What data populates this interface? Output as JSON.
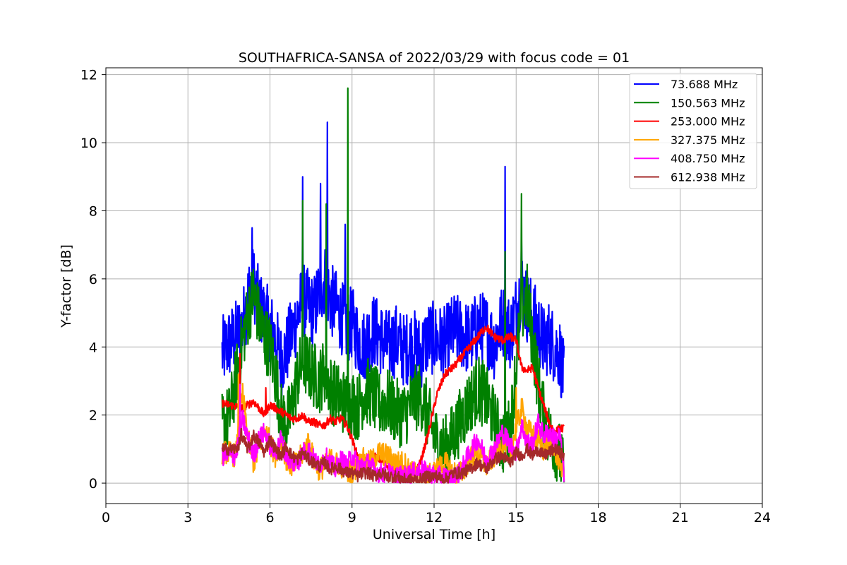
{
  "chart_data": {
    "type": "line",
    "title": "SOUTHAFRICA-SANSA of 2022/03/29 with focus code = 01",
    "xlabel": "Universal Time [h]",
    "ylabel": "Y-factor [dB]",
    "xlim": [
      0,
      24
    ],
    "ylim": [
      -0.6,
      12.2
    ],
    "xticks": [
      0,
      3,
      6,
      9,
      12,
      15,
      18,
      21,
      24
    ],
    "xtick_labels": [
      "0",
      "3",
      "6",
      "9",
      "12",
      "15",
      "18",
      "21",
      "24"
    ],
    "yticks": [
      0,
      2,
      4,
      6,
      8,
      10,
      12
    ],
    "ytick_labels": [
      "0",
      "2",
      "4",
      "6",
      "8",
      "10",
      "12"
    ],
    "grid": true,
    "legend_position": "top-right",
    "series": [
      {
        "name": " 73.688 MHz",
        "color": "#0000ff",
        "x": [
          4.25,
          4.5,
          4.75,
          5.0,
          5.2,
          5.4,
          5.6,
          5.8,
          6.0,
          6.2,
          6.4,
          6.6,
          6.8,
          7.0,
          7.2,
          7.4,
          7.6,
          7.8,
          8.0,
          8.2,
          8.4,
          8.6,
          8.8,
          9.0,
          9.2,
          9.4,
          9.6,
          9.8,
          10.0,
          10.3,
          10.6,
          10.9,
          11.2,
          11.5,
          11.8,
          12.1,
          12.4,
          12.7,
          13.0,
          13.3,
          13.6,
          13.9,
          14.2,
          14.5,
          14.8,
          15.0,
          15.2,
          15.4,
          15.6,
          15.8,
          16.0,
          16.2,
          16.4,
          16.6,
          16.75
        ],
        "values": [
          3.8,
          4.1,
          4.3,
          4.6,
          5.5,
          5.9,
          5.2,
          4.9,
          4.6,
          4.2,
          3.6,
          3.9,
          4.4,
          4.9,
          5.4,
          5.2,
          5.0,
          5.6,
          6.0,
          5.4,
          5.2,
          4.9,
          4.6,
          4.7,
          4.3,
          4.0,
          4.3,
          4.5,
          4.3,
          4.0,
          4.2,
          3.9,
          4.1,
          3.8,
          4.3,
          4.2,
          4.1,
          4.5,
          4.4,
          4.2,
          4.6,
          4.5,
          4.1,
          4.8,
          4.4,
          5.1,
          5.8,
          5.2,
          4.9,
          4.6,
          4.1,
          4.3,
          4.0,
          3.8,
          3.0
        ],
        "spikes": [
          [
            5.35,
            7.5
          ],
          [
            7.2,
            9.0
          ],
          [
            7.85,
            8.8
          ],
          [
            8.1,
            10.6
          ],
          [
            8.75,
            7.6
          ],
          [
            14.6,
            9.3
          ],
          [
            15.2,
            7.3
          ]
        ]
      },
      {
        "name": "150.563 MHz",
        "color": "#008000",
        "x": [
          4.25,
          4.5,
          4.75,
          5.0,
          5.2,
          5.4,
          5.6,
          5.8,
          6.0,
          6.2,
          6.4,
          6.6,
          6.8,
          7.0,
          7.2,
          7.4,
          7.6,
          7.8,
          8.0,
          8.2,
          8.4,
          8.6,
          8.8,
          9.0,
          9.2,
          9.4,
          9.6,
          9.8,
          10.0,
          10.3,
          10.6,
          10.9,
          11.2,
          11.5,
          11.8,
          12.1,
          12.4,
          12.7,
          13.0,
          13.3,
          13.6,
          13.9,
          14.2,
          14.5,
          14.8,
          15.0,
          15.2,
          15.4,
          15.6,
          15.8,
          16.0,
          16.2,
          16.4,
          16.6,
          16.75
        ],
        "values": [
          1.7,
          1.9,
          3.0,
          4.2,
          5.0,
          5.6,
          4.8,
          4.3,
          4.0,
          3.2,
          2.0,
          1.7,
          2.2,
          3.1,
          3.6,
          3.4,
          3.2,
          3.0,
          3.3,
          2.8,
          2.6,
          2.5,
          2.3,
          2.4,
          2.2,
          2.6,
          2.7,
          2.5,
          2.3,
          2.4,
          2.1,
          2.0,
          2.4,
          2.6,
          1.9,
          1.2,
          1.0,
          1.4,
          1.9,
          2.4,
          2.8,
          2.5,
          1.8,
          1.2,
          1.6,
          3.5,
          5.0,
          5.5,
          4.2,
          3.0,
          2.0,
          1.4,
          1.2,
          0.8,
          0.2
        ],
        "spikes": [
          [
            7.2,
            8.3
          ],
          [
            8.85,
            11.6
          ],
          [
            8.05,
            8.2
          ],
          [
            15.2,
            8.5
          ],
          [
            14.6,
            6.8
          ]
        ]
      },
      {
        "name": "253.000 MHz",
        "color": "#ff0000",
        "x": [
          4.25,
          4.5,
          4.75,
          5.0,
          5.2,
          5.4,
          5.6,
          5.8,
          6.0,
          6.2,
          6.4,
          6.6,
          6.8,
          7.0,
          7.2,
          7.4,
          7.6,
          7.8,
          8.0,
          8.2,
          8.4,
          8.6,
          8.8,
          9.0,
          9.2,
          9.4,
          9.6,
          9.8,
          10.0,
          10.3,
          10.6,
          10.9,
          11.2,
          11.5,
          11.8,
          12.1,
          12.4,
          12.7,
          13.0,
          13.3,
          13.6,
          13.9,
          14.2,
          14.5,
          14.8,
          15.0,
          15.2,
          15.4,
          15.6,
          15.8,
          16.0,
          16.2,
          16.4,
          16.6,
          16.75
        ],
        "values": [
          2.35,
          2.3,
          2.25,
          2.2,
          2.3,
          2.4,
          2.2,
          2.0,
          2.3,
          2.2,
          2.1,
          2.0,
          1.9,
          1.9,
          2.0,
          1.8,
          1.8,
          1.7,
          1.7,
          1.9,
          1.8,
          1.9,
          1.7,
          1.3,
          0.8,
          0.6,
          0.7,
          0.8,
          0.7,
          0.5,
          0.4,
          0.3,
          0.2,
          0.6,
          1.5,
          2.6,
          3.2,
          3.4,
          3.7,
          4.0,
          4.3,
          4.6,
          4.3,
          4.2,
          4.3,
          4.2,
          3.4,
          3.3,
          3.4,
          2.8,
          2.3,
          1.8,
          1.5,
          1.6,
          1.6
        ],
        "spikes": [
          [
            4.9,
            3.8
          ],
          [
            5.85,
            2.8
          ]
        ]
      },
      {
        "name": "327.375 MHz",
        "color": "#ffa500",
        "x": [
          4.25,
          4.5,
          4.75,
          5.0,
          5.2,
          5.4,
          5.6,
          5.8,
          6.0,
          6.2,
          6.4,
          6.6,
          6.8,
          7.0,
          7.2,
          7.4,
          7.6,
          7.8,
          8.0,
          8.2,
          8.4,
          8.6,
          8.8,
          9.0,
          9.2,
          9.4,
          9.6,
          9.8,
          10.0,
          10.3,
          10.6,
          10.9,
          11.2,
          11.5,
          11.8,
          12.1,
          12.4,
          12.7,
          13.0,
          13.3,
          13.6,
          13.9,
          14.2,
          14.5,
          14.8,
          15.0,
          15.2,
          15.4,
          15.6,
          15.8,
          16.0,
          16.2,
          16.4,
          16.6,
          16.75
        ],
        "values": [
          0.9,
          0.9,
          0.8,
          2.6,
          1.3,
          0.6,
          1.0,
          1.6,
          1.2,
          0.8,
          1.3,
          0.7,
          0.5,
          0.6,
          0.9,
          1.2,
          0.7,
          0.4,
          0.5,
          0.7,
          0.6,
          0.5,
          0.4,
          0.3,
          0.5,
          0.7,
          0.6,
          0.7,
          0.9,
          0.8,
          0.6,
          0.6,
          0.3,
          0.2,
          0.2,
          0.4,
          0.6,
          0.3,
          0.3,
          0.7,
          0.9,
          0.5,
          0.8,
          1.2,
          0.9,
          1.6,
          2.2,
          1.6,
          1.4,
          1.3,
          1.0,
          1.2,
          1.0,
          0.6,
          0.4
        ],
        "spikes": [
          [
            4.85,
            3.2
          ],
          [
            15.0,
            2.8
          ]
        ]
      },
      {
        "name": "408.750 MHz",
        "color": "#ff00ff",
        "x": [
          4.25,
          4.5,
          4.75,
          5.0,
          5.2,
          5.4,
          5.6,
          5.8,
          6.0,
          6.2,
          6.4,
          6.6,
          6.8,
          7.0,
          7.2,
          7.4,
          7.6,
          7.8,
          8.0,
          8.2,
          8.4,
          8.6,
          8.8,
          9.0,
          9.2,
          9.4,
          9.6,
          9.8,
          10.0,
          10.3,
          10.6,
          10.9,
          11.2,
          11.5,
          11.8,
          12.1,
          12.4,
          12.7,
          13.0,
          13.3,
          13.6,
          13.9,
          14.2,
          14.5,
          14.8,
          15.0,
          15.2,
          15.4,
          15.6,
          15.8,
          16.0,
          16.2,
          16.4,
          16.6,
          16.75
        ],
        "values": [
          0.8,
          0.8,
          0.8,
          1.9,
          1.3,
          0.8,
          1.3,
          1.5,
          1.1,
          0.9,
          1.3,
          0.8,
          0.6,
          0.6,
          0.9,
          1.0,
          0.7,
          0.5,
          0.8,
          0.6,
          0.4,
          0.7,
          0.5,
          0.8,
          0.6,
          0.5,
          0.6,
          0.4,
          0.3,
          0.3,
          0.2,
          0.2,
          0.3,
          0.4,
          0.3,
          0.2,
          0.2,
          0.1,
          0.4,
          0.9,
          1.3,
          0.7,
          1.0,
          1.5,
          1.1,
          0.9,
          1.7,
          1.2,
          1.1,
          1.8,
          1.4,
          1.5,
          1.3,
          1.4,
          0.3
        ],
        "spikes": [
          [
            4.9,
            2.9
          ]
        ]
      },
      {
        "name": "612.938 MHz",
        "color": "#a52a2a",
        "x": [
          4.25,
          4.5,
          4.75,
          5.0,
          5.2,
          5.4,
          5.6,
          5.8,
          6.0,
          6.2,
          6.4,
          6.6,
          6.8,
          7.0,
          7.2,
          7.4,
          7.6,
          7.8,
          8.0,
          8.2,
          8.4,
          8.6,
          8.8,
          9.0,
          9.2,
          9.4,
          9.6,
          9.8,
          10.0,
          10.3,
          10.6,
          10.9,
          11.2,
          11.5,
          11.8,
          12.1,
          12.4,
          12.7,
          13.0,
          13.3,
          13.6,
          13.9,
          14.2,
          14.5,
          14.8,
          15.0,
          15.2,
          15.4,
          15.6,
          15.8,
          16.0,
          16.2,
          16.4,
          16.6,
          16.75
        ],
        "values": [
          1.0,
          1.0,
          1.0,
          1.3,
          1.0,
          1.4,
          1.2,
          0.9,
          1.3,
          1.0,
          0.8,
          1.1,
          0.8,
          0.7,
          0.9,
          0.7,
          0.6,
          0.5,
          0.6,
          0.4,
          0.5,
          0.4,
          0.3,
          0.3,
          0.2,
          0.3,
          0.3,
          0.2,
          0.3,
          0.2,
          0.2,
          0.1,
          0.1,
          0.1,
          0.2,
          0.2,
          0.1,
          0.3,
          0.3,
          0.4,
          0.6,
          0.4,
          0.7,
          0.8,
          0.6,
          0.9,
          0.8,
          1.0,
          0.8,
          1.0,
          0.8,
          0.9,
          1.0,
          0.9,
          0.8
        ],
        "spikes": [
          [
            4.95,
            1.6
          ]
        ]
      }
    ]
  }
}
